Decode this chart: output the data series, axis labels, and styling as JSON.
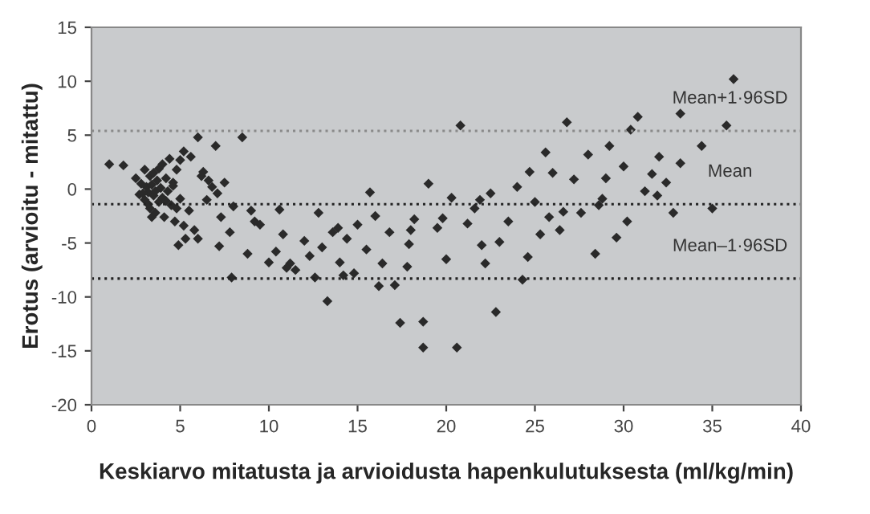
{
  "chart_data": {
    "type": "scatter",
    "xlabel": "Keskiarvo mitatusta ja arvioidusta hapenkulutuksesta (ml/kg/min)",
    "ylabel": "Erotus (arvioitu - mitattu)",
    "xlim": [
      0,
      40
    ],
    "xticks": [
      0,
      5,
      10,
      15,
      20,
      25,
      30,
      35,
      40
    ],
    "ylim": [
      -20,
      15
    ],
    "yticks": [
      -20,
      -15,
      -10,
      -5,
      0,
      5,
      10,
      15
    ],
    "marker": "diamond",
    "ref_lines": [
      {
        "axis": "y",
        "value": 5.4,
        "label": "Mean+1·96SD",
        "color": "#8a8a8a",
        "line_style": "dotted"
      },
      {
        "axis": "y",
        "value": -1.4,
        "label": "Mean",
        "color": "#222222",
        "line_style": "dotted"
      },
      {
        "axis": "y",
        "value": -8.3,
        "label": "Mean–1·96SD",
        "color": "#222222",
        "line_style": "dotted"
      }
    ],
    "series": [
      {
        "color": "#2a2a2a",
        "x": [
          1.0,
          1.8,
          2.5,
          2.7,
          2.8,
          3.0,
          3.0,
          3.1,
          3.2,
          3.3,
          3.3,
          3.4,
          3.5,
          3.5,
          3.6,
          3.7,
          3.8,
          3.8,
          3.9,
          4.0,
          4.0,
          4.1,
          4.2,
          4.3,
          4.4,
          4.5,
          4.6,
          4.7,
          4.8,
          5.0,
          5.0,
          5.2,
          5.3,
          5.5,
          3.2,
          3.6,
          4.2,
          4.6,
          2.9,
          3.4,
          4.9,
          5.6,
          6.0,
          6.2,
          6.5,
          6.8,
          7.0,
          7.3,
          7.5,
          7.8,
          8.0,
          8.5,
          9.0,
          5.8,
          6.3,
          6.0,
          5.2,
          7.1,
          4.8,
          6.6,
          7.2,
          7.9,
          8.8,
          9.5,
          10.0,
          10.4,
          10.8,
          11.2,
          11.5,
          12.0,
          12.3,
          12.6,
          13.0,
          13.3,
          13.6,
          14.0,
          14.4,
          14.8,
          15.0,
          15.5,
          16.0,
          16.4,
          16.8,
          17.1,
          17.4,
          17.8,
          18.2,
          18.7,
          18.7,
          19.0,
          19.5,
          20.0,
          20.3,
          20.6,
          20.8,
          21.2,
          21.6,
          22.0,
          22.5,
          22.8,
          23.0,
          23.5,
          24.0,
          24.3,
          24.7,
          25.0,
          25.3,
          25.6,
          26.0,
          26.4,
          26.8,
          27.2,
          27.6,
          28.0,
          28.4,
          28.8,
          29.2,
          29.6,
          30.0,
          30.4,
          30.8,
          31.2,
          31.6,
          32.0,
          32.4,
          32.8,
          33.2,
          33.2,
          34.4,
          35.0,
          35.8,
          36.2,
          9.2,
          10.6,
          12.8,
          13.9,
          15.7,
          17.9,
          19.8,
          21.9,
          24.6,
          26.6,
          28.6,
          30.2,
          31.9,
          11.0,
          14.2,
          16.2,
          18.0,
          22.2,
          25.8,
          29.0
        ],
        "values": [
          2.3,
          2.2,
          1.0,
          -0.5,
          0.5,
          1.8,
          -1.0,
          0.2,
          -0.3,
          1.2,
          -1.8,
          0.4,
          -0.6,
          1.5,
          -2.2,
          0.8,
          -1.2,
          1.9,
          0.1,
          -0.8,
          2.3,
          -2.6,
          1.0,
          -0.2,
          2.8,
          -1.5,
          0.6,
          -3.0,
          1.8,
          2.7,
          -0.9,
          3.5,
          -4.6,
          -2.0,
          -1.4,
          -0.2,
          -1.1,
          0.3,
          -0.4,
          -2.6,
          -5.2,
          3.0,
          4.8,
          1.2,
          -1.0,
          0.2,
          4.0,
          -2.6,
          0.6,
          -4.0,
          -1.6,
          4.8,
          -2.0,
          -3.8,
          1.6,
          -4.6,
          -3.4,
          -0.4,
          -1.8,
          0.8,
          -5.3,
          -8.2,
          -6.0,
          -3.3,
          -6.8,
          -5.8,
          -4.2,
          -6.9,
          -7.5,
          -4.8,
          -6.2,
          -8.2,
          -5.4,
          -10.4,
          -4.0,
          -6.8,
          -4.6,
          -7.8,
          -3.3,
          -5.6,
          -2.5,
          -6.9,
          -4.0,
          -8.9,
          -12.4,
          -7.2,
          -2.8,
          -12.3,
          -14.7,
          0.5,
          -3.6,
          -6.5,
          -0.8,
          -14.7,
          5.9,
          -3.2,
          -1.8,
          -5.2,
          -0.4,
          -11.4,
          -4.9,
          -3.0,
          0.2,
          -8.4,
          1.6,
          -1.2,
          -4.2,
          3.4,
          1.5,
          -3.8,
          6.2,
          0.9,
          -2.2,
          3.2,
          -6.0,
          -0.9,
          4.0,
          -4.5,
          2.1,
          5.5,
          6.7,
          -0.2,
          1.4,
          3.0,
          0.6,
          -2.2,
          2.4,
          7.0,
          4.0,
          -1.8,
          5.9,
          10.2,
          -3.0,
          -1.9,
          -2.2,
          -3.6,
          -0.3,
          -5.1,
          -2.7,
          -1.0,
          -6.3,
          -2.1,
          -1.5,
          -3.0,
          -0.6,
          -7.3,
          -8.0,
          -9.0,
          -3.8,
          -6.9,
          -2.6,
          1.0
        ]
      }
    ]
  }
}
